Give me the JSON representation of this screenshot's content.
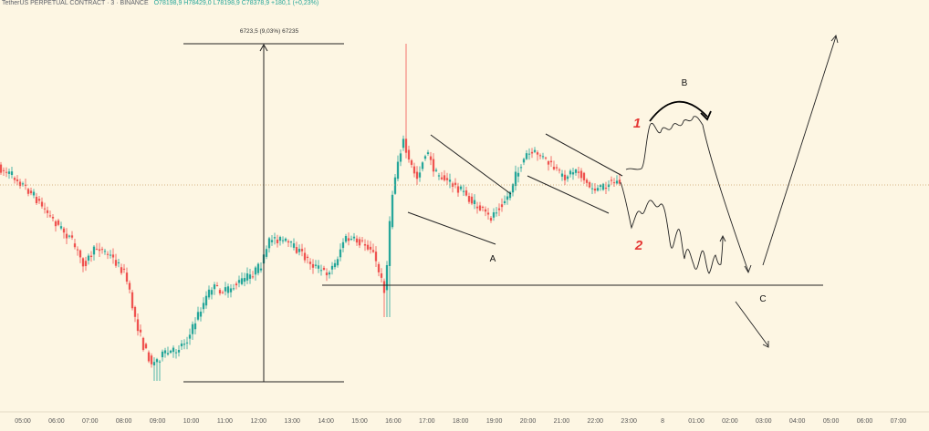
{
  "header": {
    "symbol_line": "TetherUS PERPETUAL CONTRACT · 3 · BINANCE",
    "ohlc": "O78198,9 H78429,0 L78198,9 C78378,9 +180,1 (+0,23%)"
  },
  "colors": {
    "background": "#fdf6e3",
    "up": "#26a69a",
    "down": "#ef5350",
    "drawing": "#222222",
    "scenario_label": "#e53935",
    "axis_text": "#555555",
    "price_line": "#c9a36a"
  },
  "chart_data": {
    "type": "candlestick",
    "timeframe": "3m",
    "x_axis": {
      "ticks": [
        "05:00",
        "06:00",
        "07:00",
        "08:00",
        "09:00",
        "10:00",
        "11:00",
        "12:00",
        "13:00",
        "14:00",
        "15:00",
        "16:00",
        "17:00",
        "18:00",
        "19:00",
        "20:00",
        "21:00",
        "22:00",
        "23:00",
        "8",
        "01:00",
        "02:00",
        "03:00",
        "04:00",
        "05:00",
        "06:00",
        "07:00"
      ]
    },
    "y_axis_visible": false,
    "measure_label": "6723,5 (9,03%) 67235",
    "annotations": {
      "wave_labels": [
        "A",
        "B",
        "C"
      ],
      "scenario_labels": [
        "1",
        "2"
      ]
    }
  }
}
